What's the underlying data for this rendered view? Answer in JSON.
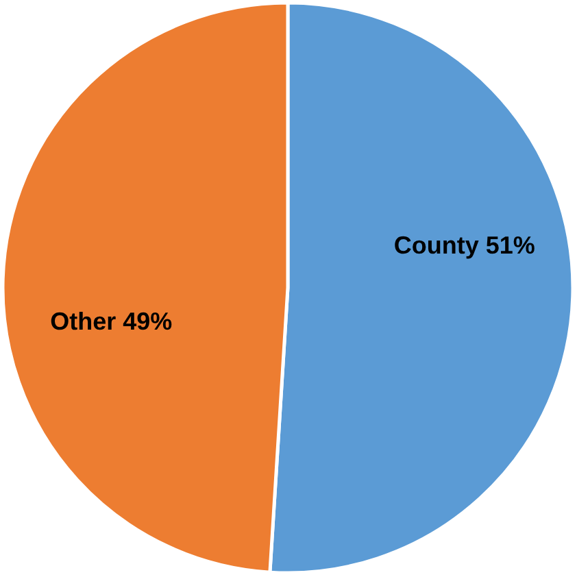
{
  "chart_data": {
    "type": "pie",
    "categories": [
      "County",
      "Other"
    ],
    "values": [
      51,
      49
    ],
    "colors": [
      "#5b9bd5",
      "#ed7d31"
    ],
    "value_labels": [
      "51%",
      "49%"
    ]
  }
}
